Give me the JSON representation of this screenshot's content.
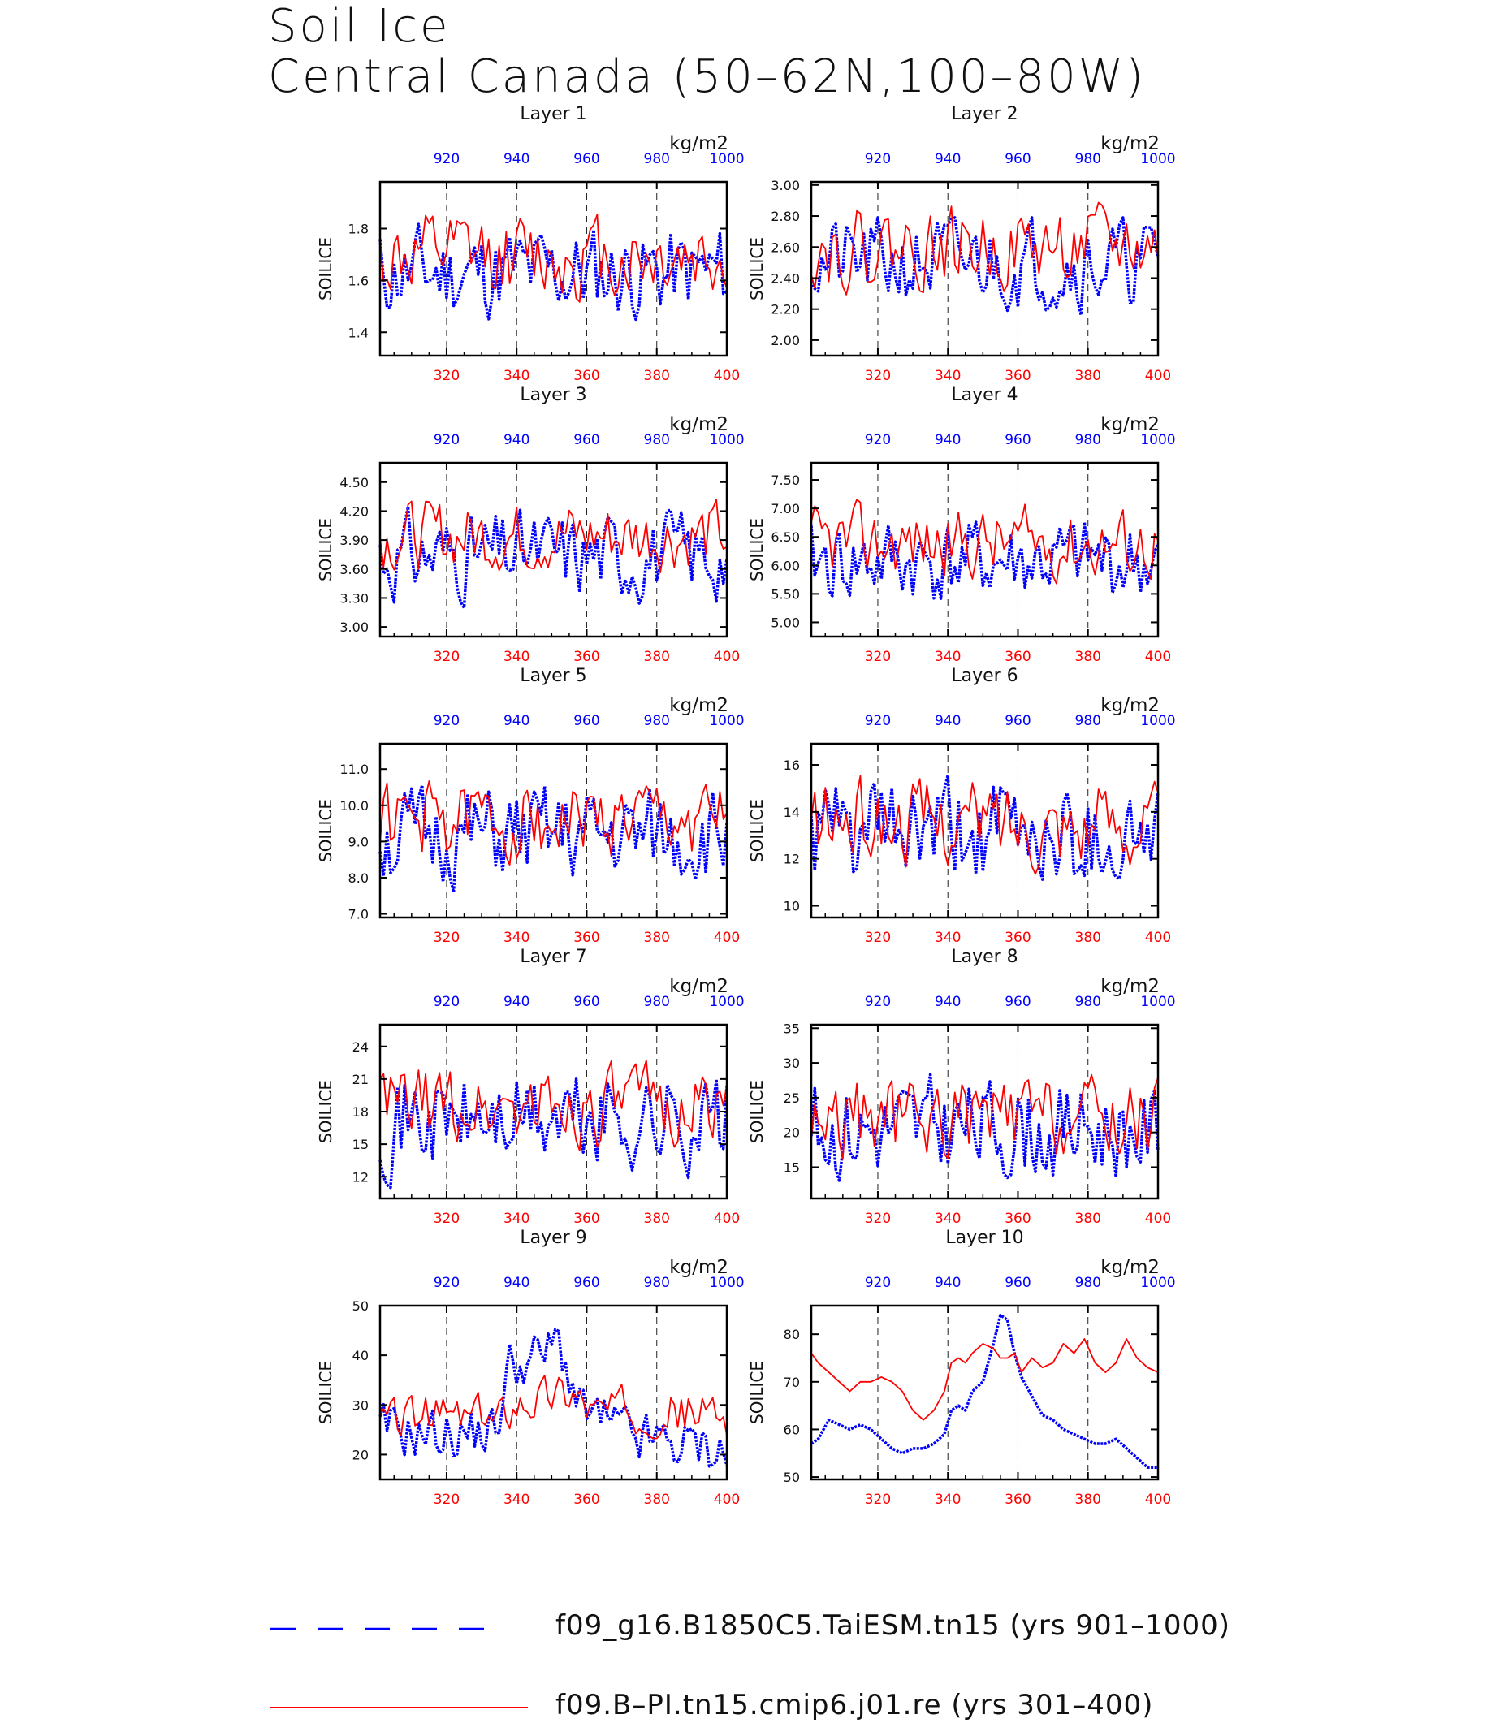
{
  "title": {
    "line1": "Soil Ice",
    "line2": "Central Canada (50–62N,100–80W)"
  },
  "legend": [
    {
      "label": "f09_g16.B1850C5.TaiESM.tn15 (yrs 901–1000)",
      "color": "#0000ff",
      "style": "dashed"
    },
    {
      "label": "f09.B–PI.tn15.cmip6.j01.re (yrs 301–400)",
      "color": "#ff0000",
      "style": "solid"
    }
  ],
  "colors": {
    "blue": "#0000ff",
    "red": "#ff0000"
  },
  "chart_data": [
    {
      "type": "line",
      "title": "Layer 1",
      "ylabel": "SOILICE",
      "units": "kg/m2",
      "x_bottom": {
        "ticks": [
          320,
          340,
          360,
          380,
          400
        ],
        "range": [
          301,
          400
        ],
        "color": "#ff0000"
      },
      "x_top": {
        "ticks": [
          920,
          940,
          960,
          980,
          1000
        ],
        "range": [
          901,
          1000
        ],
        "color": "#0000ff"
      },
      "ylim": [
        1.31,
        1.98
      ],
      "yticks": [
        1.4,
        1.6,
        1.8
      ],
      "ytick_labels": [
        "1.4",
        "1.6",
        "1.8"
      ],
      "series": [
        {
          "name": "f09_g16.B1850C5.TaiESM.tn15 (yrs 901–1000)",
          "color": "#0000ff",
          "style": "dashed",
          "mean": 1.63,
          "amp": 0.1,
          "min": 1.32,
          "max": 1.83,
          "seed": 11
        },
        {
          "name": "f09.B–PI.tn15.cmip6.j01.re (yrs 301–400)",
          "color": "#ff0000",
          "style": "solid",
          "mean": 1.69,
          "amp": 0.09,
          "min": 1.42,
          "max": 1.93,
          "seed": 12
        }
      ]
    },
    {
      "type": "line",
      "title": "Layer 2",
      "ylabel": "SOILICE",
      "units": "kg/m2",
      "x_bottom": {
        "ticks": [
          320,
          340,
          360,
          380,
          400
        ],
        "range": [
          301,
          400
        ],
        "color": "#ff0000"
      },
      "x_top": {
        "ticks": [
          920,
          940,
          960,
          980,
          1000
        ],
        "range": [
          901,
          1000
        ],
        "color": "#0000ff"
      },
      "ylim": [
        1.9,
        3.02
      ],
      "yticks": [
        2.0,
        2.2,
        2.4,
        2.6,
        2.8,
        3.0
      ],
      "ytick_labels": [
        "2.00",
        "2.20",
        "2.40",
        "2.60",
        "2.80",
        "3.00"
      ],
      "series": [
        {
          "name": "f09_g16.B1850C5.TaiESM.tn15 (yrs 901–1000)",
          "color": "#0000ff",
          "style": "dashed",
          "mean": 2.5,
          "amp": 0.16,
          "min": 1.96,
          "max": 2.79,
          "seed": 21
        },
        {
          "name": "f09.B–PI.tn15.cmip6.j01.re (yrs 301–400)",
          "color": "#ff0000",
          "style": "solid",
          "mean": 2.6,
          "amp": 0.14,
          "min": 2.19,
          "max": 2.98,
          "seed": 22
        }
      ]
    },
    {
      "type": "line",
      "title": "Layer 3",
      "ylabel": "SOILICE",
      "units": "kg/m2",
      "x_bottom": {
        "ticks": [
          320,
          340,
          360,
          380,
          400
        ],
        "range": [
          301,
          400
        ],
        "color": "#ff0000"
      },
      "x_top": {
        "ticks": [
          920,
          940,
          960,
          980,
          1000
        ],
        "range": [
          901,
          1000
        ],
        "color": "#0000ff"
      },
      "ylim": [
        2.9,
        4.7
      ],
      "yticks": [
        3.0,
        3.3,
        3.6,
        3.9,
        4.2,
        4.5
      ],
      "ytick_labels": [
        "3.00",
        "3.30",
        "3.60",
        "3.90",
        "4.20",
        "4.50"
      ],
      "series": [
        {
          "name": "f09_g16.B1850C5.TaiESM.tn15 (yrs 901–1000)",
          "color": "#0000ff",
          "style": "dashed",
          "mean": 3.75,
          "amp": 0.25,
          "min": 2.96,
          "max": 4.27,
          "seed": 31
        },
        {
          "name": "f09.B–PI.tn15.cmip6.j01.re (yrs 301–400)",
          "color": "#ff0000",
          "style": "solid",
          "mean": 3.95,
          "amp": 0.2,
          "min": 3.4,
          "max": 4.66,
          "seed": 32
        }
      ]
    },
    {
      "type": "line",
      "title": "Layer 4",
      "ylabel": "SOILICE",
      "units": "kg/m2",
      "x_bottom": {
        "ticks": [
          320,
          340,
          360,
          380,
          400
        ],
        "range": [
          301,
          400
        ],
        "color": "#ff0000"
      },
      "x_top": {
        "ticks": [
          920,
          940,
          960,
          980,
          1000
        ],
        "range": [
          901,
          1000
        ],
        "color": "#0000ff"
      },
      "ylim": [
        4.75,
        7.8
      ],
      "yticks": [
        5.0,
        5.5,
        6.0,
        6.5,
        7.0,
        7.5
      ],
      "ytick_labels": [
        "5.00",
        "5.50",
        "6.00",
        "6.50",
        "7.00",
        "7.50"
      ],
      "series": [
        {
          "name": "f09_g16.B1850C5.TaiESM.tn15 (yrs 901–1000)",
          "color": "#0000ff",
          "style": "dashed",
          "mean": 6.05,
          "amp": 0.42,
          "min": 4.86,
          "max": 7.1,
          "seed": 41
        },
        {
          "name": "f09.B–PI.tn15.cmip6.j01.re (yrs 301–400)",
          "color": "#ff0000",
          "style": "solid",
          "mean": 6.4,
          "amp": 0.35,
          "min": 5.45,
          "max": 7.7,
          "seed": 42
        }
      ]
    },
    {
      "type": "line",
      "title": "Layer 5",
      "ylabel": "SOILICE",
      "units": "kg/m2",
      "x_bottom": {
        "ticks": [
          320,
          340,
          360,
          380,
          400
        ],
        "range": [
          301,
          400
        ],
        "color": "#ff0000"
      },
      "x_top": {
        "ticks": [
          920,
          940,
          960,
          980,
          1000
        ],
        "range": [
          901,
          1000
        ],
        "color": "#0000ff"
      },
      "ylim": [
        6.9,
        11.7
      ],
      "yticks": [
        7,
        8,
        9,
        10,
        11
      ],
      "ytick_labels": [
        "7.0",
        "8.0",
        "9.0",
        "10.0",
        "11.0"
      ],
      "series": [
        {
          "name": "f09_g16.B1850C5.TaiESM.tn15 (yrs 901–1000)",
          "color": "#0000ff",
          "style": "dashed",
          "mean": 9.1,
          "amp": 0.75,
          "min": 7.2,
          "max": 10.9,
          "seed": 51
        },
        {
          "name": "f09.B–PI.tn15.cmip6.j01.re (yrs 301–400)",
          "color": "#ff0000",
          "style": "solid",
          "mean": 9.6,
          "amp": 0.6,
          "min": 7.9,
          "max": 11.5,
          "seed": 52
        }
      ]
    },
    {
      "type": "line",
      "title": "Layer 6",
      "ylabel": "SOILICE",
      "units": "kg/m2",
      "x_bottom": {
        "ticks": [
          320,
          340,
          360,
          380,
          400
        ],
        "range": [
          301,
          400
        ],
        "color": "#ff0000"
      },
      "x_top": {
        "ticks": [
          920,
          940,
          960,
          980,
          1000
        ],
        "range": [
          901,
          1000
        ],
        "color": "#0000ff"
      },
      "ylim": [
        9.5,
        16.9
      ],
      "yticks": [
        10,
        12,
        14,
        16
      ],
      "ytick_labels": [
        "10",
        "12",
        "14",
        "16"
      ],
      "series": [
        {
          "name": "f09_g16.B1850C5.TaiESM.tn15 (yrs 901–1000)",
          "color": "#0000ff",
          "style": "dashed",
          "mean": 13.0,
          "amp": 1.3,
          "min": 9.8,
          "max": 16.4,
          "seed": 61
        },
        {
          "name": "f09.B–PI.tn15.cmip6.j01.re (yrs 301–400)",
          "color": "#ff0000",
          "style": "solid",
          "mean": 13.6,
          "amp": 1.0,
          "min": 10.2,
          "max": 16.2,
          "seed": 62
        }
      ]
    },
    {
      "type": "line",
      "title": "Layer 7",
      "ylabel": "SOILICE",
      "units": "kg/m2",
      "x_bottom": {
        "ticks": [
          320,
          340,
          360,
          380,
          400
        ],
        "range": [
          301,
          400
        ],
        "color": "#ff0000"
      },
      "x_top": {
        "ticks": [
          920,
          940,
          960,
          980,
          1000
        ],
        "range": [
          901,
          1000
        ],
        "color": "#0000ff"
      },
      "ylim": [
        10.0,
        26.0
      ],
      "yticks": [
        12,
        15,
        18,
        21,
        24
      ],
      "ytick_labels": [
        "12",
        "15",
        "18",
        "21",
        "24"
      ],
      "series": [
        {
          "name": "f09_g16.B1850C5.TaiESM.tn15 (yrs 901–1000)",
          "color": "#0000ff",
          "style": "dashed",
          "mean": 17.2,
          "amp": 2.6,
          "min": 11.0,
          "max": 25.0,
          "seed": 71
        },
        {
          "name": "f09.B–PI.tn15.cmip6.j01.re (yrs 301–400)",
          "color": "#ff0000",
          "style": "solid",
          "mean": 18.5,
          "amp": 2.0,
          "min": 10.8,
          "max": 23.8,
          "seed": 72
        }
      ]
    },
    {
      "type": "line",
      "title": "Layer 8",
      "ylabel": "SOILICE",
      "units": "kg/m2",
      "x_bottom": {
        "ticks": [
          320,
          340,
          360,
          380,
          400
        ],
        "range": [
          301,
          400
        ],
        "color": "#ff0000"
      },
      "x_top": {
        "ticks": [
          920,
          940,
          960,
          980,
          1000
        ],
        "range": [
          901,
          1000
        ],
        "color": "#0000ff"
      },
      "ylim": [
        10.5,
        35.5
      ],
      "yticks": [
        15,
        20,
        25,
        30,
        35
      ],
      "ytick_labels": [
        "15",
        "20",
        "25",
        "30",
        "35"
      ],
      "series": [
        {
          "name": "f09_g16.B1850C5.TaiESM.tn15 (yrs 901–1000)",
          "color": "#0000ff",
          "style": "dashed",
          "mean": 20.5,
          "amp": 4.0,
          "min": 11.5,
          "max": 35.0,
          "seed": 81
        },
        {
          "name": "f09.B–PI.tn15.cmip6.j01.re (yrs 301–400)",
          "color": "#ff0000",
          "style": "solid",
          "mean": 22.0,
          "amp": 3.3,
          "min": 12.0,
          "max": 31.0,
          "seed": 82
        }
      ]
    },
    {
      "type": "line",
      "title": "Layer 9",
      "ylabel": "SOILICE",
      "units": "kg/m2",
      "x_bottom": {
        "ticks": [
          320,
          340,
          360,
          380,
          400
        ],
        "range": [
          301,
          400
        ],
        "color": "#ff0000"
      },
      "x_top": {
        "ticks": [
          920,
          940,
          960,
          980,
          1000
        ],
        "range": [
          901,
          1000
        ],
        "color": "#0000ff"
      },
      "ylim": [
        15.0,
        50.0
      ],
      "yticks": [
        20,
        30,
        40,
        50
      ],
      "ytick_labels": [
        "20",
        "30",
        "40",
        "50"
      ],
      "series": [
        {
          "name": "f09_g16.B1850C5.TaiESM.tn15 (yrs 901–1000)",
          "color": "#0000ff",
          "style": "dashed",
          "mean": 26.0,
          "amp": 3.0,
          "min": 16.5,
          "max": 49.0,
          "seed": 91,
          "trend": [
            [
              301,
              25
            ],
            [
              320,
              24
            ],
            [
              334,
              25
            ],
            [
              338,
              38
            ],
            [
              348,
              40
            ],
            [
              352,
              43
            ],
            [
              358,
              29
            ],
            [
              375,
              23
            ],
            [
              400,
              21
            ]
          ]
        },
        {
          "name": "f09.B–PI.tn15.cmip6.j01.re (yrs 301–400)",
          "color": "#ff0000",
          "style": "solid",
          "mean": 28.0,
          "amp": 2.5,
          "min": 21.0,
          "max": 38.0,
          "seed": 92,
          "trend": [
            [
              301,
              27
            ],
            [
              320,
              28
            ],
            [
              334,
              27
            ],
            [
              340,
              31
            ],
            [
              356,
              33
            ],
            [
              362,
              29
            ],
            [
              380,
              29
            ],
            [
              400,
              28
            ]
          ]
        }
      ]
    },
    {
      "type": "line",
      "title": "Layer 10",
      "ylabel": "SOILICE",
      "units": "kg/m2",
      "x_bottom": {
        "ticks": [
          320,
          340,
          360,
          380,
          400
        ],
        "range": [
          301,
          400
        ],
        "color": "#ff0000"
      },
      "x_top": {
        "ticks": [
          920,
          940,
          960,
          980,
          1000
        ],
        "range": [
          901,
          1000
        ],
        "color": "#0000ff"
      },
      "ylim": [
        49.5,
        86.0
      ],
      "yticks": [
        50,
        60,
        70,
        80
      ],
      "ytick_labels": [
        "50",
        "60",
        "70",
        "80"
      ],
      "series": [
        {
          "name": "f09_g16.B1850C5.TaiESM.tn15 (yrs 901–1000)",
          "color": "#0000ff",
          "style": "dashed",
          "smooth": true,
          "x": [
            301,
            303,
            306,
            309,
            312,
            315,
            318,
            321,
            324,
            327,
            330,
            333,
            336,
            339,
            341,
            343,
            345,
            347,
            350,
            353,
            355,
            357,
            359,
            361,
            364,
            367,
            370,
            373,
            376,
            379,
            382,
            385,
            388,
            391,
            394,
            397,
            400
          ],
          "y": [
            57,
            58,
            62,
            61,
            60,
            61,
            60,
            58,
            56,
            55,
            56,
            56,
            57,
            59,
            64,
            65,
            64,
            68,
            70,
            78,
            84,
            83,
            76,
            71,
            67,
            63,
            62,
            60,
            59,
            58,
            57,
            57,
            58,
            56,
            54,
            52,
            52
          ]
        },
        {
          "name": "f09.B–PI.tn15.cmip6.j01.re (yrs 301–400)",
          "color": "#ff0000",
          "style": "solid",
          "smooth": true,
          "x": [
            301,
            303,
            306,
            309,
            312,
            315,
            318,
            321,
            324,
            327,
            330,
            333,
            336,
            339,
            341,
            343,
            345,
            347,
            350,
            353,
            355,
            357,
            359,
            361,
            364,
            367,
            370,
            373,
            376,
            379,
            382,
            385,
            388,
            391,
            394,
            397,
            400
          ],
          "y": [
            76,
            74,
            72,
            70,
            68,
            70,
            70,
            71,
            70,
            68,
            64,
            62,
            64,
            68,
            74,
            75,
            74,
            76,
            78,
            77,
            75,
            75,
            76,
            72,
            75,
            73,
            74,
            78,
            76,
            79,
            74,
            72,
            74,
            79,
            75,
            73,
            72
          ]
        }
      ]
    }
  ]
}
